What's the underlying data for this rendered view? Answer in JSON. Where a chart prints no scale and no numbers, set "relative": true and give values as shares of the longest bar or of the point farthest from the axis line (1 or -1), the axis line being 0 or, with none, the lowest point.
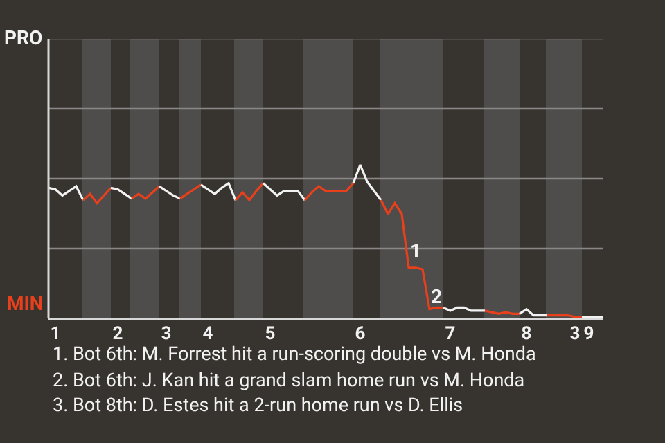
{
  "chart_data": {
    "type": "line",
    "relative": true,
    "categories": [
      null,
      "1",
      null,
      null,
      null,
      null,
      null,
      null,
      null,
      null,
      "2",
      null,
      null,
      null,
      null,
      null,
      null,
      "3",
      null,
      null,
      null,
      null,
      null,
      "4",
      null,
      null,
      null,
      null,
      null,
      null,
      null,
      null,
      "5",
      null,
      null,
      null,
      null,
      null,
      null,
      null,
      null,
      null,
      null,
      null,
      null,
      "6",
      null,
      null,
      null,
      null,
      null,
      null,
      null,
      null,
      null,
      null,
      null,
      null,
      "7",
      null,
      null,
      null,
      null,
      null,
      null,
      null,
      null,
      null,
      null,
      "8",
      null,
      null,
      null,
      null,
      null,
      null,
      "3",
      null,
      "9",
      null,
      null
    ],
    "ref_lines": [
      {
        "axis": "y",
        "value": 0.455,
        "color": "#8a8886"
      },
      {
        "axis": "y",
        "value": 0.91,
        "color": "#8a8886"
      },
      {
        "axis": "y",
        "value": 1.365,
        "color": "#8a8886"
      },
      {
        "axis": "y",
        "value": 1.82,
        "color": "#8a8886"
      }
    ],
    "marker": "none",
    "line_style": "solid",
    "series": [
      {
        "color": "#f2f2f2",
        "values": [
          0.85,
          0.84,
          0.8,
          0.83,
          0.86,
          0.77,
          null,
          null,
          null,
          null,
          null,
          null,
          null,
          null,
          null,
          null,
          null,
          null,
          null,
          null,
          null,
          null,
          null,
          null,
          null,
          null,
          null,
          null,
          null,
          null,
          null,
          null,
          null,
          null,
          null,
          null,
          null,
          null,
          null,
          null,
          null,
          null,
          null,
          null,
          null,
          null,
          null,
          null,
          null,
          null,
          null,
          null,
          null,
          null,
          null,
          null,
          null,
          null,
          null,
          null,
          null,
          null,
          null,
          null,
          null,
          null,
          null,
          null,
          null,
          null,
          null,
          null,
          null,
          null,
          null,
          null,
          null,
          null,
          null,
          null,
          null
        ]
      },
      {
        "color": "#e8401c",
        "values": [
          null,
          null,
          null,
          null,
          null,
          0.77,
          0.81,
          0.75,
          0.8,
          0.85,
          null,
          null,
          null,
          null,
          null,
          null,
          null,
          null,
          null,
          null,
          null,
          null,
          null,
          null,
          null,
          null,
          null,
          null,
          null,
          null,
          null,
          null,
          null,
          null,
          null,
          null,
          null,
          null,
          null,
          null,
          null,
          null,
          null,
          null,
          null,
          null,
          null,
          null,
          null,
          null,
          null,
          null,
          null,
          null,
          null,
          null,
          null,
          null,
          null,
          null,
          null,
          null,
          null,
          null,
          null,
          null,
          null,
          null,
          null,
          null,
          null,
          null,
          null,
          null,
          null,
          null,
          null,
          null,
          null,
          null,
          null
        ]
      },
      {
        "color": "#f2f2f2",
        "values": [
          null,
          null,
          null,
          null,
          null,
          null,
          null,
          null,
          null,
          0.85,
          0.84,
          0.81,
          0.78,
          null,
          null,
          null,
          null,
          null,
          null,
          null,
          null,
          null,
          null,
          null,
          null,
          null,
          null,
          null,
          null,
          null,
          null,
          null,
          null,
          null,
          null,
          null,
          null,
          null,
          null,
          null,
          null,
          null,
          null,
          null,
          null,
          null,
          null,
          null,
          null,
          null,
          null,
          null,
          null,
          null,
          null,
          null,
          null,
          null,
          null,
          null,
          null,
          null,
          null,
          null,
          null,
          null,
          null,
          null,
          null,
          null,
          null,
          null,
          null,
          null,
          null,
          null,
          null,
          null,
          null,
          null,
          null
        ]
      },
      {
        "color": "#e8401c",
        "values": [
          null,
          null,
          null,
          null,
          null,
          null,
          null,
          null,
          null,
          null,
          null,
          null,
          0.78,
          0.81,
          0.78,
          0.82,
          0.86,
          null,
          null,
          null,
          null,
          null,
          null,
          null,
          null,
          null,
          null,
          null,
          null,
          null,
          null,
          null,
          null,
          null,
          null,
          null,
          null,
          null,
          null,
          null,
          null,
          null,
          null,
          null,
          null,
          null,
          null,
          null,
          null,
          null,
          null,
          null,
          null,
          null,
          null,
          null,
          null,
          null,
          null,
          null,
          null,
          null,
          null,
          null,
          null,
          null,
          null,
          null,
          null,
          null,
          null,
          null,
          null,
          null,
          null,
          null,
          null,
          null,
          null,
          null,
          null
        ]
      },
      {
        "color": "#f2f2f2",
        "values": [
          null,
          null,
          null,
          null,
          null,
          null,
          null,
          null,
          null,
          null,
          null,
          null,
          null,
          null,
          null,
          null,
          0.86,
          0.83,
          0.8,
          0.78,
          null,
          null,
          null,
          null,
          null,
          null,
          null,
          null,
          null,
          null,
          null,
          null,
          null,
          null,
          null,
          null,
          null,
          null,
          null,
          null,
          null,
          null,
          null,
          null,
          null,
          null,
          null,
          null,
          null,
          null,
          null,
          null,
          null,
          null,
          null,
          null,
          null,
          null,
          null,
          null,
          null,
          null,
          null,
          null,
          null,
          null,
          null,
          null,
          null,
          null,
          null,
          null,
          null,
          null,
          null,
          null,
          null,
          null,
          null,
          null,
          null
        ]
      },
      {
        "color": "#e8401c",
        "values": [
          null,
          null,
          null,
          null,
          null,
          null,
          null,
          null,
          null,
          null,
          null,
          null,
          null,
          null,
          null,
          null,
          null,
          null,
          null,
          0.78,
          0.81,
          0.84,
          0.87,
          null,
          null,
          null,
          null,
          null,
          null,
          null,
          null,
          null,
          null,
          null,
          null,
          null,
          null,
          null,
          null,
          null,
          null,
          null,
          null,
          null,
          null,
          null,
          null,
          null,
          null,
          null,
          null,
          null,
          null,
          null,
          null,
          null,
          null,
          null,
          null,
          null,
          null,
          null,
          null,
          null,
          null,
          null,
          null,
          null,
          null,
          null,
          null,
          null,
          null,
          null,
          null,
          null,
          null,
          null,
          null,
          null,
          null
        ]
      },
      {
        "color": "#f2f2f2",
        "values": [
          null,
          null,
          null,
          null,
          null,
          null,
          null,
          null,
          null,
          null,
          null,
          null,
          null,
          null,
          null,
          null,
          null,
          null,
          null,
          null,
          null,
          null,
          0.87,
          0.84,
          0.81,
          0.85,
          0.88,
          0.77,
          null,
          null,
          null,
          null,
          null,
          null,
          null,
          null,
          null,
          null,
          null,
          null,
          null,
          null,
          null,
          null,
          null,
          null,
          null,
          null,
          null,
          null,
          null,
          null,
          null,
          null,
          null,
          null,
          null,
          null,
          null,
          null,
          null,
          null,
          null,
          null,
          null,
          null,
          null,
          null,
          null,
          null,
          null,
          null,
          null,
          null,
          null,
          null,
          null,
          null,
          null,
          null,
          null
        ]
      },
      {
        "color": "#e8401c",
        "values": [
          null,
          null,
          null,
          null,
          null,
          null,
          null,
          null,
          null,
          null,
          null,
          null,
          null,
          null,
          null,
          null,
          null,
          null,
          null,
          null,
          null,
          null,
          null,
          null,
          null,
          null,
          null,
          0.77,
          0.82,
          0.77,
          0.83,
          0.88,
          null,
          null,
          null,
          null,
          null,
          null,
          null,
          null,
          null,
          null,
          null,
          null,
          null,
          null,
          null,
          null,
          null,
          null,
          null,
          null,
          null,
          null,
          null,
          null,
          null,
          null,
          null,
          null,
          null,
          null,
          null,
          null,
          null,
          null,
          null,
          null,
          null,
          null,
          null,
          null,
          null,
          null,
          null,
          null,
          null,
          null,
          null,
          null,
          null
        ]
      },
      {
        "color": "#f2f2f2",
        "values": [
          null,
          null,
          null,
          null,
          null,
          null,
          null,
          null,
          null,
          null,
          null,
          null,
          null,
          null,
          null,
          null,
          null,
          null,
          null,
          null,
          null,
          null,
          null,
          null,
          null,
          null,
          null,
          null,
          null,
          null,
          null,
          0.88,
          0.84,
          0.8,
          0.83,
          0.83,
          0.83,
          0.77,
          null,
          null,
          null,
          null,
          null,
          null,
          null,
          null,
          null,
          null,
          null,
          null,
          null,
          null,
          null,
          null,
          null,
          null,
          null,
          null,
          null,
          null,
          null,
          null,
          null,
          null,
          null,
          null,
          null,
          null,
          null,
          null,
          null,
          null,
          null,
          null,
          null,
          null,
          null,
          null,
          null,
          null,
          null
        ]
      },
      {
        "color": "#e8401c",
        "values": [
          null,
          null,
          null,
          null,
          null,
          null,
          null,
          null,
          null,
          null,
          null,
          null,
          null,
          null,
          null,
          null,
          null,
          null,
          null,
          null,
          null,
          null,
          null,
          null,
          null,
          null,
          null,
          null,
          null,
          null,
          null,
          null,
          null,
          null,
          null,
          null,
          null,
          0.77,
          0.82,
          0.86,
          0.83,
          0.83,
          0.83,
          0.83,
          0.88,
          null,
          null,
          null,
          null,
          null,
          null,
          null,
          null,
          null,
          null,
          null,
          null,
          null,
          null,
          null,
          null,
          null,
          null,
          null,
          null,
          null,
          null,
          null,
          null,
          null,
          null,
          null,
          null,
          null,
          null,
          null,
          null,
          null,
          null,
          null,
          null
        ]
      },
      {
        "color": "#f2f2f2",
        "values": [
          null,
          null,
          null,
          null,
          null,
          null,
          null,
          null,
          null,
          null,
          null,
          null,
          null,
          null,
          null,
          null,
          null,
          null,
          null,
          null,
          null,
          null,
          null,
          null,
          null,
          null,
          null,
          null,
          null,
          null,
          null,
          null,
          null,
          null,
          null,
          null,
          null,
          null,
          null,
          null,
          null,
          null,
          null,
          null,
          0.88,
          1,
          0.89,
          0.83,
          0.77,
          null,
          null,
          null,
          null,
          null,
          null,
          null,
          null,
          null,
          null,
          null,
          null,
          null,
          null,
          null,
          null,
          null,
          null,
          null,
          null,
          null,
          null,
          null,
          null,
          null,
          null,
          null,
          null,
          null,
          null,
          null,
          null
        ]
      },
      {
        "color": "#e8401c",
        "values": [
          null,
          null,
          null,
          null,
          null,
          null,
          null,
          null,
          null,
          null,
          null,
          null,
          null,
          null,
          null,
          null,
          null,
          null,
          null,
          null,
          null,
          null,
          null,
          null,
          null,
          null,
          null,
          null,
          null,
          null,
          null,
          null,
          null,
          null,
          null,
          null,
          null,
          null,
          null,
          null,
          null,
          null,
          null,
          null,
          null,
          null,
          null,
          null,
          0.77,
          0.68,
          0.75,
          0.68,
          0.33,
          0.33,
          0.32,
          0.06,
          0.07,
          0.07,
          null,
          null,
          null,
          null,
          null,
          null,
          null,
          null,
          null,
          null,
          null,
          null,
          null,
          null,
          null,
          null,
          null,
          null,
          null,
          null,
          null,
          null,
          null
        ]
      },
      {
        "color": "#f2f2f2",
        "values": [
          null,
          null,
          null,
          null,
          null,
          null,
          null,
          null,
          null,
          null,
          null,
          null,
          null,
          null,
          null,
          null,
          null,
          null,
          null,
          null,
          null,
          null,
          null,
          null,
          null,
          null,
          null,
          null,
          null,
          null,
          null,
          null,
          null,
          null,
          null,
          null,
          null,
          null,
          null,
          null,
          null,
          null,
          null,
          null,
          null,
          null,
          null,
          null,
          null,
          null,
          null,
          null,
          null,
          null,
          null,
          null,
          null,
          0.07,
          0.05,
          0.07,
          0.07,
          0.05,
          0.05,
          0.05,
          null,
          null,
          null,
          null,
          null,
          null,
          null,
          null,
          null,
          null,
          null,
          null,
          null,
          null,
          null,
          null,
          null
        ]
      },
      {
        "color": "#e8401c",
        "values": [
          null,
          null,
          null,
          null,
          null,
          null,
          null,
          null,
          null,
          null,
          null,
          null,
          null,
          null,
          null,
          null,
          null,
          null,
          null,
          null,
          null,
          null,
          null,
          null,
          null,
          null,
          null,
          null,
          null,
          null,
          null,
          null,
          null,
          null,
          null,
          null,
          null,
          null,
          null,
          null,
          null,
          null,
          null,
          null,
          null,
          null,
          null,
          null,
          null,
          null,
          null,
          null,
          null,
          null,
          null,
          null,
          null,
          null,
          null,
          null,
          null,
          null,
          null,
          0.05,
          0.04,
          0.03,
          0.04,
          0.03,
          0.03,
          null,
          null,
          null,
          null,
          null,
          null,
          null,
          null,
          null,
          null,
          null,
          null
        ]
      },
      {
        "color": "#f2f2f2",
        "values": [
          null,
          null,
          null,
          null,
          null,
          null,
          null,
          null,
          null,
          null,
          null,
          null,
          null,
          null,
          null,
          null,
          null,
          null,
          null,
          null,
          null,
          null,
          null,
          null,
          null,
          null,
          null,
          null,
          null,
          null,
          null,
          null,
          null,
          null,
          null,
          null,
          null,
          null,
          null,
          null,
          null,
          null,
          null,
          null,
          null,
          null,
          null,
          null,
          null,
          null,
          null,
          null,
          null,
          null,
          null,
          null,
          null,
          null,
          null,
          null,
          null,
          null,
          null,
          null,
          null,
          null,
          null,
          null,
          0.03,
          0.06,
          0.02,
          0.02,
          0.02,
          null,
          null,
          null,
          null,
          null,
          null,
          null,
          null
        ]
      },
      {
        "color": "#e8401c",
        "values": [
          null,
          null,
          null,
          null,
          null,
          null,
          null,
          null,
          null,
          null,
          null,
          null,
          null,
          null,
          null,
          null,
          null,
          null,
          null,
          null,
          null,
          null,
          null,
          null,
          null,
          null,
          null,
          null,
          null,
          null,
          null,
          null,
          null,
          null,
          null,
          null,
          null,
          null,
          null,
          null,
          null,
          null,
          null,
          null,
          null,
          null,
          null,
          null,
          null,
          null,
          null,
          null,
          null,
          null,
          null,
          null,
          null,
          null,
          null,
          null,
          null,
          null,
          null,
          null,
          null,
          null,
          null,
          null,
          null,
          null,
          null,
          null,
          0.02,
          0.02,
          0.02,
          0.02,
          0.01,
          0.01,
          null,
          null,
          null
        ]
      },
      {
        "color": "#f2f2f2",
        "values": [
          null,
          null,
          null,
          null,
          null,
          null,
          null,
          null,
          null,
          null,
          null,
          null,
          null,
          null,
          null,
          null,
          null,
          null,
          null,
          null,
          null,
          null,
          null,
          null,
          null,
          null,
          null,
          null,
          null,
          null,
          null,
          null,
          null,
          null,
          null,
          null,
          null,
          null,
          null,
          null,
          null,
          null,
          null,
          null,
          null,
          null,
          null,
          null,
          null,
          null,
          null,
          null,
          null,
          null,
          null,
          null,
          null,
          null,
          null,
          null,
          null,
          null,
          null,
          null,
          null,
          null,
          null,
          null,
          null,
          null,
          null,
          null,
          null,
          null,
          null,
          null,
          null,
          0.01,
          0.01,
          0.01,
          0.01
        ]
      }
    ],
    "annotations": [
      "PRO",
      "MIN",
      "1",
      "2",
      "1. Bot 6th: M. Forrest hit a run-scoring double vs M. Honda",
      "2. Bot 6th: J. Kan hit a grand slam home run vs M. Honda",
      "3. Bot 8th: D. Estes hit a 2-run home run vs D. Ellis"
    ]
  }
}
